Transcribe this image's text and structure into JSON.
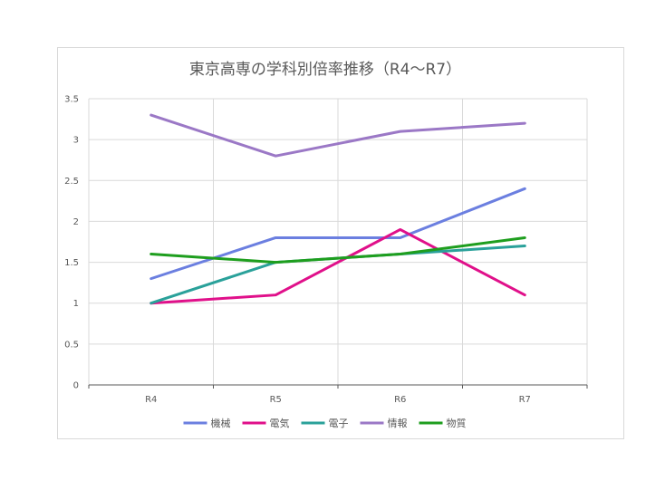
{
  "chart_data": {
    "type": "line",
    "title": "東京高専の学科別倍率推移（R4〜R7）",
    "xlabel": "",
    "ylabel": "",
    "categories": [
      "R4",
      "R5",
      "R6",
      "R7"
    ],
    "ylim": [
      0,
      3.5
    ],
    "yticks": [
      "0",
      "0.5",
      "1",
      "1.5",
      "2",
      "2.5",
      "3",
      "3.5"
    ],
    "grid": true,
    "legend_position": "bottom",
    "series": [
      {
        "name": "機械",
        "color": "#6b7fe0",
        "values": [
          1.3,
          1.8,
          1.8,
          2.4
        ]
      },
      {
        "name": "電気",
        "color": "#e0108a",
        "values": [
          1.0,
          1.1,
          1.9,
          1.1
        ]
      },
      {
        "name": "電子",
        "color": "#2aa19a",
        "values": [
          1.0,
          1.5,
          1.6,
          1.7
        ]
      },
      {
        "name": "情報",
        "color": "#9b78c6",
        "values": [
          3.3,
          2.8,
          3.1,
          3.2
        ]
      },
      {
        "name": "物質",
        "color": "#1e9e1e",
        "values": [
          1.6,
          1.5,
          1.6,
          1.8
        ]
      }
    ]
  }
}
